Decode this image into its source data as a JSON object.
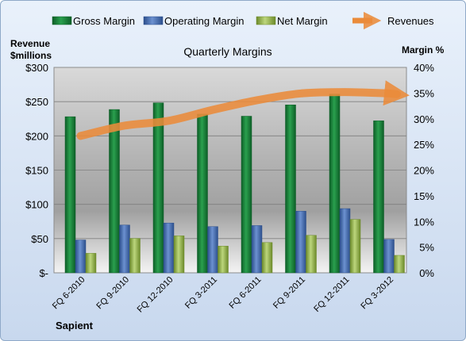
{
  "chart_data": {
    "type": "bar",
    "title": "Quarterly Margins",
    "left_axis_title": [
      "Revenue",
      "$millions"
    ],
    "right_axis_title": "Margin %",
    "source_label": "Sapient",
    "categories": [
      "FQ 6-2010",
      "FQ 9-2010",
      "FQ 12-2010",
      "FQ 3-2011",
      "FQ 6-2011",
      "FQ 9-2011",
      "FQ 12-2011",
      "FQ 3-2012"
    ],
    "left_axis": {
      "min": 0,
      "max": 300,
      "step": 50,
      "tick_labels": [
        "$-",
        "$50",
        "$100",
        "$150",
        "$200",
        "$250",
        "$300"
      ]
    },
    "right_axis": {
      "min": 0,
      "max": 40,
      "step": 5,
      "tick_labels": [
        "0%",
        "5%",
        "10%",
        "15%",
        "20%",
        "25%",
        "30%",
        "35%",
        "40%"
      ]
    },
    "series": [
      {
        "name": "Gross Margin",
        "axis": "right",
        "color": "#1e8a3e",
        "values": [
          30.4,
          31.8,
          33.1,
          30.9,
          30.5,
          32.7,
          34.8,
          29.6
        ]
      },
      {
        "name": "Operating Margin",
        "axis": "right",
        "color": "#4a72b8",
        "values": [
          6.4,
          9.3,
          9.7,
          9.0,
          9.2,
          12.0,
          12.5,
          6.5
        ]
      },
      {
        "name": "Net Margin",
        "axis": "right",
        "color": "#9bbb59",
        "values": [
          3.8,
          6.7,
          7.2,
          5.2,
          5.9,
          7.3,
          10.4,
          3.4
        ]
      },
      {
        "name": "Revenues",
        "axis": "left",
        "type": "line",
        "color": "#ea8b3a",
        "values": [
          200,
          215,
          222,
          238,
          252,
          262,
          264,
          262
        ]
      }
    ],
    "legend_position": "top",
    "grid": true
  }
}
